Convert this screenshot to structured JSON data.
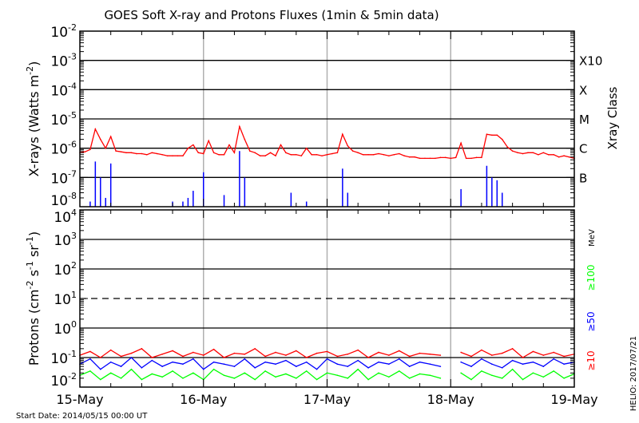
{
  "title": "GOES Soft X-ray and Protons Fluxes   (1min & 5min data)",
  "footer": {
    "start_date": "Start Date: 2014/05/15 00:00 UT",
    "stamp": "HELIO: 2017/07/21"
  },
  "colors": {
    "xray_long": "#ff0000",
    "xray_short": "#0000ff",
    "p10": "#ff0000",
    "p50": "#0000ff",
    "p100": "#00ff00",
    "grid": "#000000",
    "day_lines": "#b0b0b0"
  },
  "chart_data": [
    {
      "type": "line",
      "title": "",
      "ylabel": "X-rays (Watts m^-2)",
      "ylabel_parts": {
        "main": "X-rays (Watts m",
        "sup": "-2",
        "end": ")"
      },
      "yscale": "log",
      "ylim": [
        1e-08,
        0.01
      ],
      "yticks": [
        {
          "base": "10",
          "exp": "-2"
        },
        {
          "base": "10",
          "exp": "-3"
        },
        {
          "base": "10",
          "exp": "-4"
        },
        {
          "base": "10",
          "exp": "-5"
        },
        {
          "base": "10",
          "exp": "-6"
        },
        {
          "base": "10",
          "exp": "-7"
        },
        {
          "base": "10",
          "exp": "-8"
        }
      ],
      "gridlines": [
        0.001,
        0.0001,
        1e-05,
        1e-06,
        1e-07
      ],
      "right_axis": {
        "label": "Xray Class",
        "classes": [
          {
            "label": "X10",
            "level": 0.001
          },
          {
            "label": "X",
            "level": 0.0001
          },
          {
            "label": "M",
            "level": 1e-05
          },
          {
            "label": "C",
            "level": 1e-06
          },
          {
            "label": "B",
            "level": 1e-07
          }
        ]
      },
      "x_hours_step": 1,
      "series": [
        {
          "key": "long",
          "values": [
            7e-07,
            7.5e-07,
            9e-07,
            4.5e-06,
            2e-06,
            1e-06,
            2.5e-06,
            8e-07,
            7.5e-07,
            7e-07,
            7e-07,
            6.5e-07,
            6.5e-07,
            6e-07,
            7e-07,
            6.5e-07,
            6e-07,
            5.5e-07,
            5.5e-07,
            5.5e-07,
            5.5e-07,
            1e-06,
            1.3e-06,
            7e-07,
            6.5e-07,
            1.8e-06,
            7e-07,
            6e-07,
            6e-07,
            1.3e-06,
            7e-07,
            5.5e-06,
            2e-06,
            8e-07,
            7e-07,
            5.5e-07,
            5.5e-07,
            7e-07,
            5.5e-07,
            1.3e-06,
            7e-07,
            6e-07,
            6e-07,
            5.5e-07,
            1e-06,
            6e-07,
            6e-07,
            5.5e-07,
            6e-07,
            6.5e-07,
            7e-07,
            3e-06,
            1.2e-06,
            8e-07,
            7e-07,
            6e-07,
            6e-07,
            6e-07,
            6.5e-07,
            6e-07,
            5.5e-07,
            6e-07,
            6.5e-07,
            5.5e-07,
            5e-07,
            5e-07,
            4.5e-07,
            4.5e-07,
            4.5e-07,
            4.5e-07,
            4.8e-07,
            4.8e-07,
            4.5e-07,
            4.8e-07,
            1.5e-06,
            4.5e-07,
            4.5e-07,
            4.8e-07,
            4.8e-07,
            3e-06,
            2.8e-06,
            2.8e-06,
            2e-06,
            1.1e-06,
            8e-07,
            7e-07,
            6.5e-07,
            7e-07,
            7e-07,
            6e-07,
            7e-07,
            6e-07,
            6e-07,
            5e-07,
            5.5e-07,
            5e-07,
            4.5e-07
          ]
        },
        {
          "key": "short",
          "values": [
            1e-08,
            1e-08,
            1.5e-08,
            3.5e-07,
            1e-07,
            2e-08,
            3e-07,
            1e-08,
            1e-08,
            1e-08,
            1e-08,
            1e-08,
            1e-08,
            1e-08,
            1e-08,
            1e-08,
            1e-08,
            1e-08,
            1.5e-08,
            1e-08,
            1.5e-08,
            2e-08,
            3.5e-08,
            1e-08,
            1.5e-07,
            1e-08,
            1e-08,
            1e-08,
            2.5e-08,
            1e-08,
            1e-08,
            8e-07,
            1e-07,
            1e-08,
            1e-08,
            1e-08,
            1e-08,
            1e-08,
            1e-08,
            1e-08,
            1e-08,
            3e-08,
            1e-08,
            1e-08,
            1.5e-08,
            1e-08,
            1e-08,
            1e-08,
            1e-08,
            1e-08,
            1e-08,
            2e-07,
            3e-08,
            1e-08,
            1e-08,
            1e-08,
            1e-08,
            1e-08,
            1e-08,
            1e-08,
            1e-08,
            1e-08,
            1e-08,
            1e-08,
            1e-08,
            1e-08,
            1e-08,
            1e-08,
            1e-08,
            1e-08,
            1e-08,
            1e-08,
            1e-08,
            1e-08,
            4e-08,
            1e-08,
            1e-08,
            1e-08,
            1e-08,
            2.5e-07,
            1e-07,
            8e-08,
            3e-08,
            1e-08,
            1e-08,
            1e-08,
            1e-08,
            1e-08,
            1e-08,
            1e-08,
            1e-08,
            1e-08,
            1e-08,
            1e-08,
            1e-08,
            1e-08,
            1e-08
          ]
        }
      ]
    },
    {
      "type": "line",
      "title": "",
      "ylabel": "Protons (cm^-2 s^-1 sr^-1)",
      "ylabel_parts": {
        "a": "Protons (cm",
        "s1": "-2",
        "b": "s",
        "s2": "-1",
        "c": "sr",
        "s3": "-1",
        "d": ")"
      },
      "yscale": "log",
      "ylim": [
        0.01,
        10000.0
      ],
      "yticks": [
        {
          "base": "10",
          "exp": "4"
        },
        {
          "base": "10",
          "exp": "3"
        },
        {
          "base": "10",
          "exp": "2"
        },
        {
          "base": "10",
          "exp": "1"
        },
        {
          "base": "10",
          "exp": "0"
        },
        {
          "base": "10",
          "exp": "-1"
        },
        {
          "base": "10",
          "exp": "-2"
        }
      ],
      "gridlines": [
        {
          "v": 1000.0,
          "style": "solid"
        },
        {
          "v": 100.0,
          "style": "solid"
        },
        {
          "v": 10.0,
          "style": "dashed"
        },
        {
          "v": 1.0,
          "style": "solid"
        },
        {
          "v": 0.1,
          "style": "solid"
        }
      ],
      "unit_label": "MeV",
      "x_hours_step": 2,
      "series": [
        {
          "name": "≥10",
          "key": "p10",
          "values": [
            0.12,
            0.16,
            0.1,
            0.18,
            0.11,
            0.14,
            0.2,
            0.1,
            0.13,
            0.17,
            0.11,
            0.15,
            0.12,
            0.19,
            0.1,
            0.14,
            0.13,
            0.2,
            0.11,
            0.15,
            0.12,
            0.17,
            0.1,
            0.14,
            0.16,
            0.11,
            0.13,
            0.18,
            0.1,
            0.15,
            0.12,
            0.17,
            0.11,
            0.14,
            0.13,
            0.12,
            null,
            0.15,
            0.11,
            0.18,
            0.12,
            0.14,
            0.2,
            0.1,
            0.16,
            0.12,
            0.15,
            0.11,
            0.13
          ]
        },
        {
          "name": "≥50",
          "key": "p50",
          "values": [
            0.06,
            0.09,
            0.04,
            0.07,
            0.05,
            0.1,
            0.045,
            0.08,
            0.05,
            0.07,
            0.06,
            0.09,
            0.04,
            0.07,
            0.06,
            0.05,
            0.09,
            0.045,
            0.07,
            0.06,
            0.08,
            0.05,
            0.07,
            0.04,
            0.09,
            0.06,
            0.05,
            0.08,
            0.045,
            0.07,
            0.06,
            0.09,
            0.05,
            0.07,
            0.06,
            0.05,
            null,
            0.07,
            0.05,
            0.09,
            0.06,
            0.045,
            0.08,
            0.06,
            0.07,
            0.05,
            0.09,
            0.06,
            0.07
          ]
        },
        {
          "name": "≥100",
          "key": "p100",
          "values": [
            0.025,
            0.035,
            0.018,
            0.03,
            0.02,
            0.04,
            0.018,
            0.028,
            0.022,
            0.035,
            0.02,
            0.03,
            0.018,
            0.04,
            0.025,
            0.02,
            0.03,
            0.018,
            0.035,
            0.022,
            0.028,
            0.02,
            0.035,
            0.018,
            0.03,
            0.025,
            0.02,
            0.04,
            0.018,
            0.03,
            0.022,
            0.035,
            0.02,
            0.028,
            0.025,
            0.02,
            null,
            0.03,
            0.018,
            0.035,
            0.025,
            0.02,
            0.04,
            0.018,
            0.03,
            0.022,
            0.035,
            0.02,
            0.028
          ]
        }
      ]
    }
  ],
  "x_axis": {
    "range_hours": [
      0,
      96
    ],
    "tick_labels": [
      "15-May",
      "16-May",
      "17-May",
      "18-May",
      "19-May"
    ]
  }
}
